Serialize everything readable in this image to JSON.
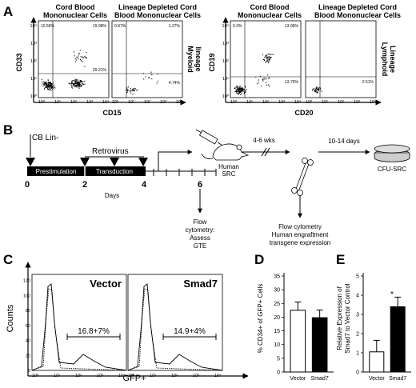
{
  "panel_a": {
    "label": "A",
    "plots": [
      {
        "title_line1": "Cord Blood",
        "title_line2": "Mononuclear Cells",
        "quadrants": [
          "10.56%",
          "19.98%",
          "29.21%"
        ]
      },
      {
        "title_line1": "Lineage Depleted Cord",
        "title_line2": "Blood Mononuclear Cells",
        "quadrants": [
          "0.87%",
          "1.27%",
          "4.74%"
        ]
      },
      {
        "title_line1": "Cord Blood",
        "title_line2": "Mononuclear Cells",
        "quadrants": [
          "0.3%",
          "13.06%",
          "13.75%"
        ]
      },
      {
        "title_line1": "Lineage Depleted Cord",
        "title_line2": "Blood Mononuclear Cells",
        "quadrants": [
          "",
          "",
          "2.51%"
        ]
      }
    ],
    "ylabel_left": "CD33",
    "ylabel_right": "CD19",
    "xlabel_left": "CD15",
    "xlabel_right": "CD20",
    "side_left_line1": "Myeloid",
    "side_left_line2": "lineage",
    "side_right_line1": "Lymphoid",
    "side_right_line2": "Lineage",
    "ticks": [
      "10⁰",
      "10¹",
      "10²",
      "10³",
      "10⁴"
    ]
  },
  "panel_b": {
    "label": "B",
    "cb_lin": "CB Lin-",
    "retrovirus": "Retrovirus",
    "prestimulation": "Prestimulation",
    "transduction": "Transduction",
    "days": [
      "0",
      "2",
      "4",
      "6"
    ],
    "days_label": "Days",
    "human_line1": "Human",
    "human_line2": "SRC",
    "weeks": "4-6 wks",
    "days_range": "10-14 days",
    "cfu": "CFU-SRC",
    "flow_left": [
      "Flow",
      "cytometry:",
      "Assess",
      "GTE"
    ],
    "flow_right": [
      "Flow cytometry",
      "Human engraftment",
      "transgene expression"
    ]
  },
  "panel_c": {
    "label": "C",
    "ylabel": "Counts",
    "xlabel": "GFP+",
    "yticks": [
      "0",
      "20",
      "40",
      "60",
      "80",
      "100",
      "120"
    ],
    "xticks": [
      "10⁰",
      "10¹",
      "10²",
      "10³",
      "10⁴"
    ],
    "hist": [
      {
        "name": "Vector",
        "annotation": "16.8+7%"
      },
      {
        "name": "Smad7",
        "annotation": "14.9+4%"
      }
    ]
  },
  "panel_d": {
    "label": "D",
    "chart_data": {
      "type": "bar",
      "categories": [
        "Vector",
        "Smad7"
      ],
      "values": [
        22.5,
        19.8
      ],
      "errors": [
        3,
        2.8
      ],
      "ylim": [
        0,
        35
      ],
      "yticks": [
        "0",
        "5",
        "10",
        "15",
        "20",
        "25",
        "30",
        "35"
      ],
      "ylabel": "% CD34+ of GFP+ Cells",
      "colors": [
        "#ffffff",
        "#000000"
      ]
    }
  },
  "panel_e": {
    "label": "E",
    "star": "*",
    "chart_data": {
      "type": "bar",
      "categories": [
        "Vector",
        "Smad7"
      ],
      "values": [
        1.05,
        3.4
      ],
      "errors": [
        0.6,
        0.5
      ],
      "ylim": [
        0,
        5
      ],
      "yticks": [
        "0",
        "1",
        "2",
        "3",
        "4",
        "5"
      ],
      "ylabel_line1": "Relative Expression of",
      "ylabel_line2": "Smad7 to Vector Control",
      "colors": [
        "#ffffff",
        "#000000"
      ]
    }
  }
}
